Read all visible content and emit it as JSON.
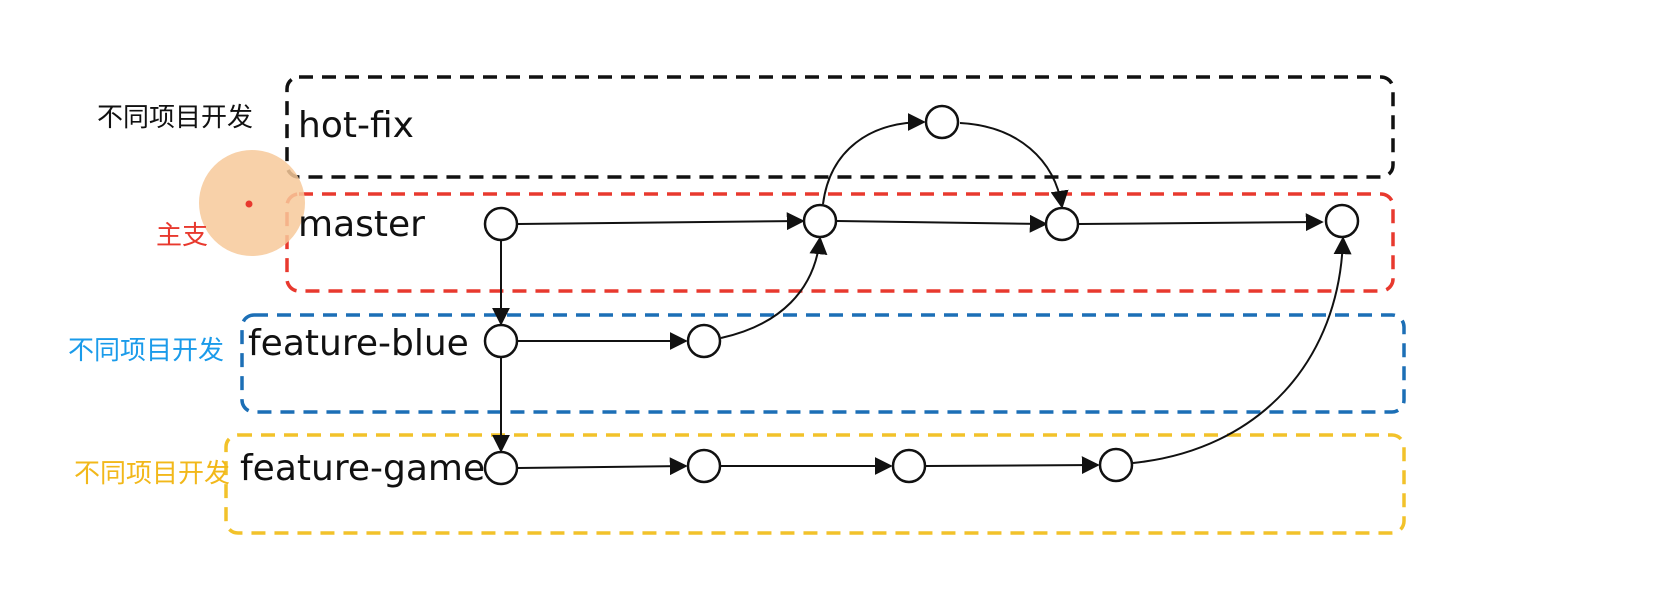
{
  "lanes": [
    {
      "id": "hot-fix",
      "label": "hot-fix",
      "side_label": "不同项目开发",
      "color": "#111111",
      "side_color": "#111111"
    },
    {
      "id": "master",
      "label": "master",
      "side_label": "主支",
      "color": "#e8392e",
      "side_color": "#e8392e"
    },
    {
      "id": "feature-blue",
      "label": "feature-blue",
      "side_label": "不同项目开发",
      "color": "#1c6fb6",
      "side_color": "#1a9bea"
    },
    {
      "id": "feature-game",
      "label": "feature-game",
      "side_label": "不同项目开发",
      "color": "#f2c22a",
      "side_color": "#f2b81a"
    }
  ],
  "commits": [
    "m1",
    "m2",
    "m3",
    "m4",
    "h1",
    "b1",
    "b2",
    "g1",
    "g2",
    "g3",
    "g4"
  ],
  "edges": [
    {
      "from": "m1",
      "to": "m2"
    },
    {
      "from": "m2",
      "to": "m3"
    },
    {
      "from": "m3",
      "to": "m4"
    },
    {
      "from": "m1",
      "to": "b1"
    },
    {
      "from": "b1",
      "to": "b2"
    },
    {
      "from": "b2",
      "to": "m2"
    },
    {
      "from": "b1",
      "to": "g1"
    },
    {
      "from": "g1",
      "to": "g2"
    },
    {
      "from": "g2",
      "to": "g3"
    },
    {
      "from": "g3",
      "to": "g4"
    },
    {
      "from": "g4",
      "to": "m4"
    },
    {
      "from": "m2",
      "to": "h1"
    },
    {
      "from": "h1",
      "to": "m3"
    }
  ],
  "cursor_color": "#f7c99a"
}
